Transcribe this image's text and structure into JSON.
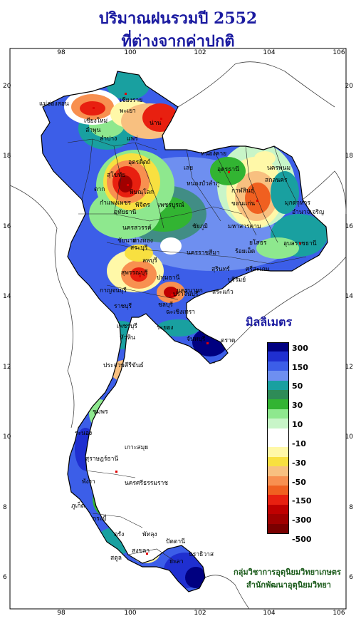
{
  "title_line1": "ปริมาณฝนรวมปี 2552",
  "title_line2": "ที่ต่างจากค่าปกติ",
  "legend": {
    "title": "มิลลิเมตร",
    "colors": [
      "#000080",
      "#1f2fd0",
      "#3c5ee8",
      "#6e8ff0",
      "#19a0a0",
      "#2e8b57",
      "#32b432",
      "#8ee88e",
      "#c8f5c8",
      "#ffffff",
      "#ffffff",
      "#fff8a8",
      "#f8e040",
      "#f8c080",
      "#f89050",
      "#f06020",
      "#e82010",
      "#c00000",
      "#a00000",
      "#7a0000"
    ],
    "labels": [
      "300",
      "150",
      "50",
      "30",
      "10",
      "-10",
      "-30",
      "-50",
      "-150",
      "-300",
      "-500"
    ]
  },
  "axis": {
    "lon_labels": [
      "98",
      "100",
      "102",
      "104",
      "106"
    ],
    "lat_labels": [
      "20",
      "18",
      "16",
      "14",
      "12",
      "10",
      "8",
      "6"
    ]
  },
  "places": [
    "เชียงราย",
    "แม่ฮ่องสอน",
    "พะเยา",
    "เชียงใหม่",
    "ลำพูน",
    "น่าน",
    "แพร่",
    "ลำปาง",
    "อุตรดิตถ์",
    "หนองคาย",
    "ตาก",
    "สุโขทัย",
    "พิษณุโลก",
    "เลย",
    "อุดรธานี",
    "นครพนม",
    "สกลนคร",
    "กำแพงเพชร",
    "พิจิตร",
    "เพชรบูรณ์",
    "ขอนแก่น",
    "มุกดาหาร",
    "นครสวรรค์",
    "ชัยภูมิ",
    "ยโสธร",
    "อุบลราชธานี",
    "ลพบุรี",
    "นครราชสีมา",
    "ร้อยเอ็ด",
    "สุรินทร์",
    "ศรีสะเกษ",
    "สุพรรณบุรี",
    "กาญจนบุรี",
    "ปทุมธานี",
    "ราชบุรี",
    "ชลบุรี",
    "ปราจีนบุรี",
    "ระยอง",
    "จันทบุรี",
    "ตราด",
    "ประจวบคีรีขันธ์",
    "ชุมพร",
    "ระนอง",
    "สุราษฎร์ธานี",
    "นครศรีธรรมราช",
    "พังงา",
    "ภูเก็ต",
    "กระบี่",
    "ตรัง",
    "พัทลุง",
    "สงขลา",
    "ปัตตานี",
    "ยะลา",
    "นราธิวาส",
    "สตูล",
    "เกาะสมุย",
    "บุรีรัมย์",
    "สระบุรี",
    "อ่างทอง",
    "ฉะเชิงเทรา",
    "เพชรบุรี",
    "หัวหิน",
    "อุทัยธานี",
    "ชัยนาท",
    "นครนายก",
    "สระแก้ว",
    "หนองบัวลำภู",
    "กาฬสินธุ์",
    "มหาสารคาม",
    "อำนาจเจริญ"
  ],
  "credit_line1": "กลุ่มวิชาการอุตุนิยมวิทยาเกษตร",
  "credit_line2": "สำนักพัฒนาอุตุนิยมวิทยา"
}
